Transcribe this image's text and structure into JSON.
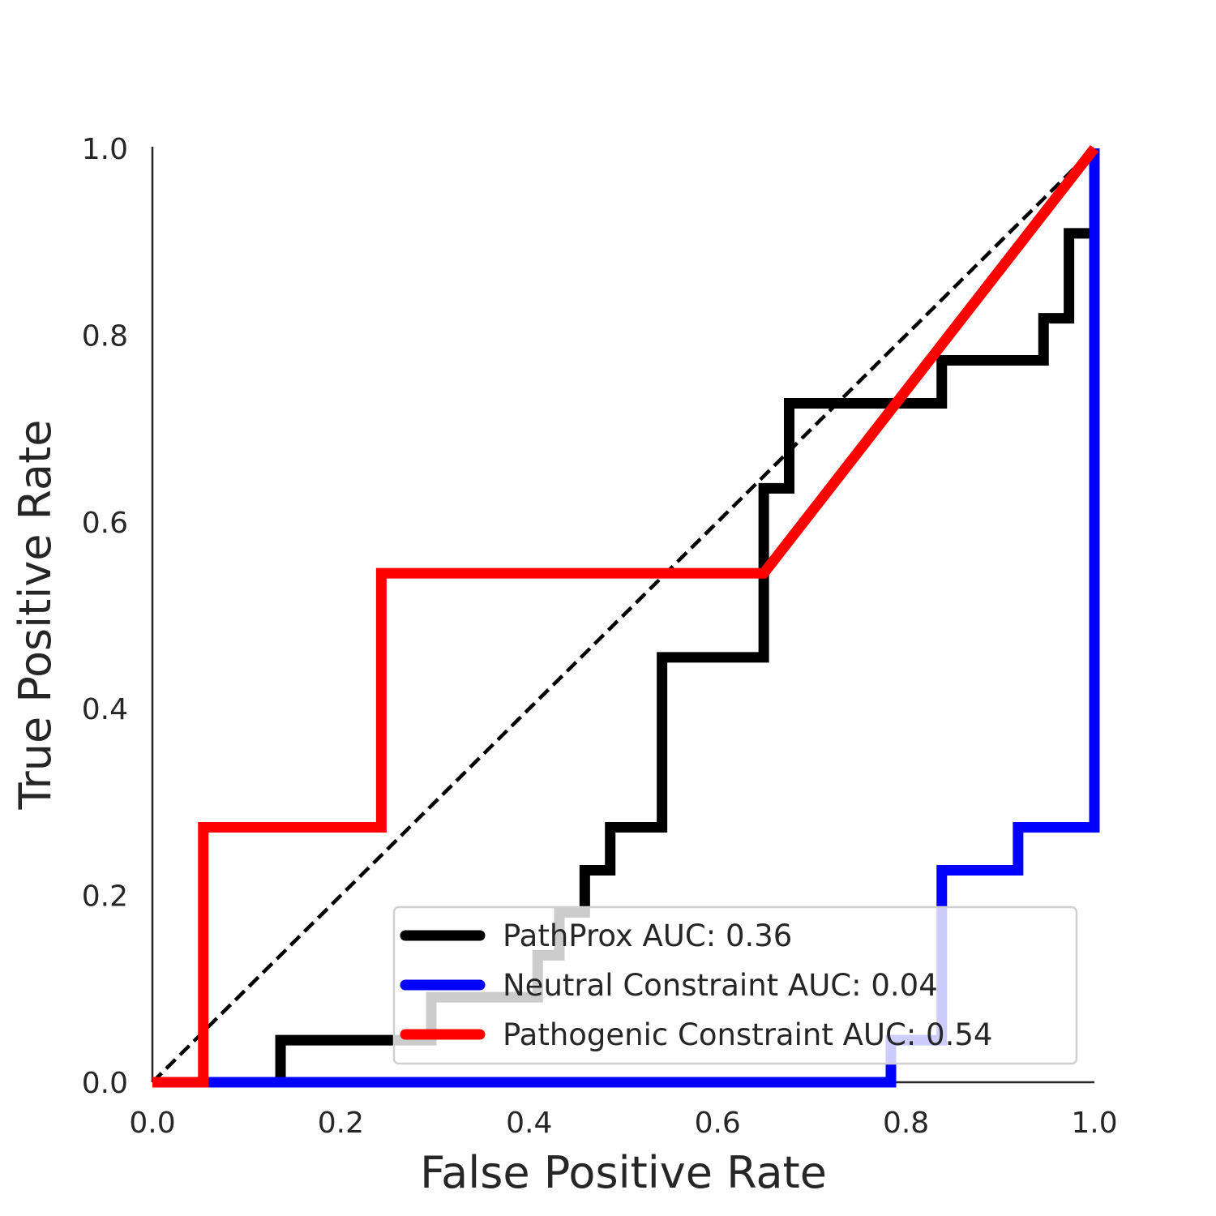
{
  "chart_data": {
    "type": "line",
    "xlabel": "False Positive Rate",
    "ylabel": "True Positive Rate",
    "xlim": [
      0.0,
      1.0
    ],
    "ylim": [
      0.0,
      1.0
    ],
    "xticks": [
      "0.0",
      "0.2",
      "0.4",
      "0.6",
      "0.8",
      "1.0"
    ],
    "yticks": [
      "0.0",
      "0.2",
      "0.4",
      "0.6",
      "0.8",
      "1.0"
    ],
    "grid": false,
    "legend_position": "lower-right",
    "reference_line": {
      "x": [
        0.0,
        1.0
      ],
      "y": [
        0.0,
        1.0
      ],
      "color": "#000000",
      "style": "dashed"
    },
    "series": [
      {
        "name": "PathProx AUC:  0.36",
        "color": "#000000",
        "x": [
          0.136,
          0.136,
          0.296,
          0.296,
          0.409,
          0.409,
          0.432,
          0.432,
          0.459,
          0.459,
          0.486,
          0.486,
          0.541,
          0.541,
          0.649,
          0.649,
          0.676,
          0.676,
          0.838,
          0.838,
          0.946,
          0.946,
          0.973,
          0.973,
          1.0
        ],
        "y": [
          0.0,
          0.045,
          0.045,
          0.091,
          0.091,
          0.136,
          0.136,
          0.182,
          0.182,
          0.227,
          0.227,
          0.273,
          0.273,
          0.455,
          0.455,
          0.636,
          0.636,
          0.727,
          0.727,
          0.773,
          0.773,
          0.818,
          0.818,
          0.909,
          0.909
        ]
      },
      {
        "name": "Neutral Constraint AUC:  0.04",
        "color": "#0000ff",
        "x": [
          0.0,
          0.784,
          0.784,
          0.838,
          0.838,
          0.919,
          0.919,
          1.0,
          1.0
        ],
        "y": [
          0.0,
          0.0,
          0.045,
          0.045,
          0.227,
          0.227,
          0.273,
          0.273,
          1.0
        ]
      },
      {
        "name": "Pathogenic Constraint AUC:  0.54",
        "color": "#ff0000",
        "x": [
          0.0,
          0.054,
          0.054,
          0.243,
          0.243,
          0.649,
          1.0
        ],
        "y": [
          0.0,
          0.0,
          0.273,
          0.273,
          0.545,
          0.545,
          1.0
        ]
      }
    ]
  }
}
